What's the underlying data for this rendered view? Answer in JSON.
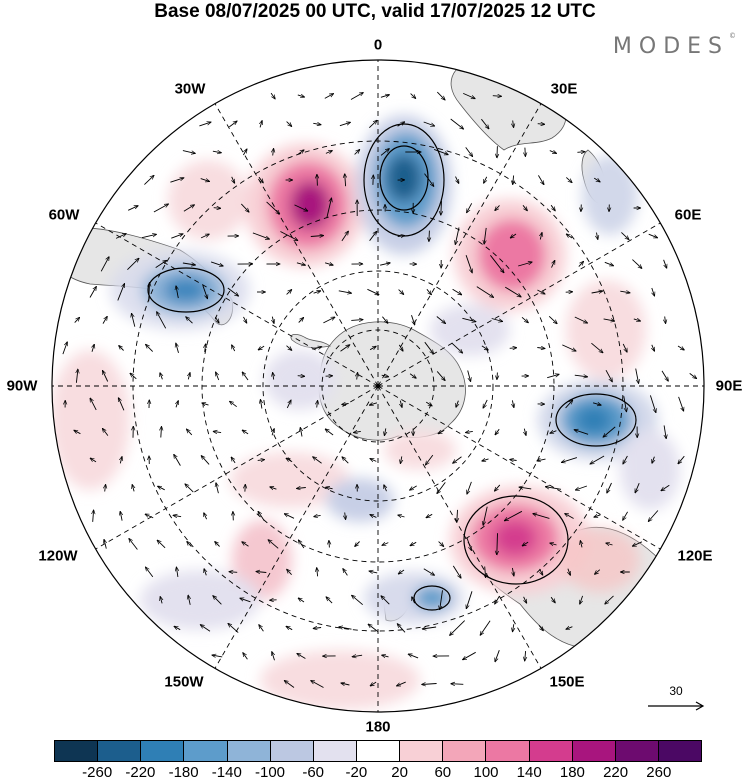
{
  "title": "Base 08/07/2025 00 UTC, valid 17/07/2025 12 UTC",
  "logo": "MODES",
  "logo_mark": "©",
  "longitude_labels": {
    "lon_0": "0",
    "lon_30e": "30E",
    "lon_60e": "60E",
    "lon_90e": "90E",
    "lon_120e": "120E",
    "lon_150e": "150E",
    "lon_180": "180",
    "lon_150w": "150W",
    "lon_120w": "120W",
    "lon_90w": "90W",
    "lon_60w": "60W",
    "lon_30w": "30W"
  },
  "reference_vector": {
    "label": "30"
  },
  "colorbar": {
    "tick_labels": [
      "-260",
      "-220",
      "-180",
      "-140",
      "-100",
      "-60",
      "-20",
      "20",
      "60",
      "100",
      "140",
      "180",
      "220",
      "260"
    ],
    "colors": [
      "#0e3553",
      "#1c5e8d",
      "#2f7fb5",
      "#5d9ccb",
      "#8fb4d8",
      "#bcc8e2",
      "#e3e1ef",
      "#ffffff",
      "#f8d0d6",
      "#f3a6b9",
      "#ec78a3",
      "#d43c8e",
      "#a8157e",
      "#6d0b6f",
      "#4b0864"
    ]
  },
  "anomaly_centers": [
    {
      "name": "anomaly-negative-south-atlantic",
      "sign": "negative",
      "peak": -200
    },
    {
      "name": "anomaly-positive-southwest-atlantic",
      "sign": "positive",
      "peak": 220
    },
    {
      "name": "anomaly-positive-south-indian-west",
      "sign": "positive",
      "peak": 140
    },
    {
      "name": "anomaly-negative-south-indian-east",
      "sign": "negative",
      "peak": -160
    },
    {
      "name": "anomaly-positive-south-of-australia",
      "sign": "positive",
      "peak": 180
    },
    {
      "name": "anomaly-negative-drake-passage",
      "sign": "negative",
      "peak": -140
    },
    {
      "name": "anomaly-negative-tasman-sea",
      "sign": "negative",
      "peak": -120
    }
  ]
}
